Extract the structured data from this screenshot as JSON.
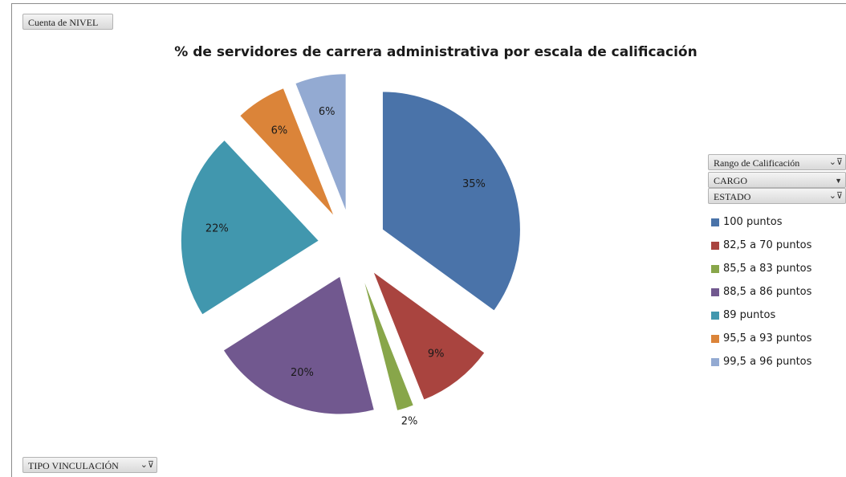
{
  "filters": {
    "values_field": "Cuenta de NIVEL",
    "legend_fields": [
      "Rango de Calificación",
      "CARGO",
      "ESTADO"
    ],
    "axis_field": "TIPO VINCULACIÓN"
  },
  "chart_data": {
    "type": "pie",
    "title": "% de servidores de carrera administrativa por escala de calificación",
    "exploded": true,
    "legend_position": "right",
    "categories": [
      "100 puntos",
      "82,5 a 70 puntos",
      "85,5 a 83 puntos",
      "88,5 a 86 puntos",
      "89 puntos",
      "95,5 a 93 puntos",
      "99,5 a 96 puntos"
    ],
    "values": [
      35,
      9,
      2,
      20,
      22,
      6,
      6
    ],
    "labels": [
      "35%",
      "9%",
      "2%",
      "20%",
      "22%",
      "6%",
      "6%"
    ],
    "colors": [
      "#4a73a9",
      "#a9443f",
      "#88a64a",
      "#71588f",
      "#4197ae",
      "#db8439",
      "#93aad2"
    ]
  }
}
